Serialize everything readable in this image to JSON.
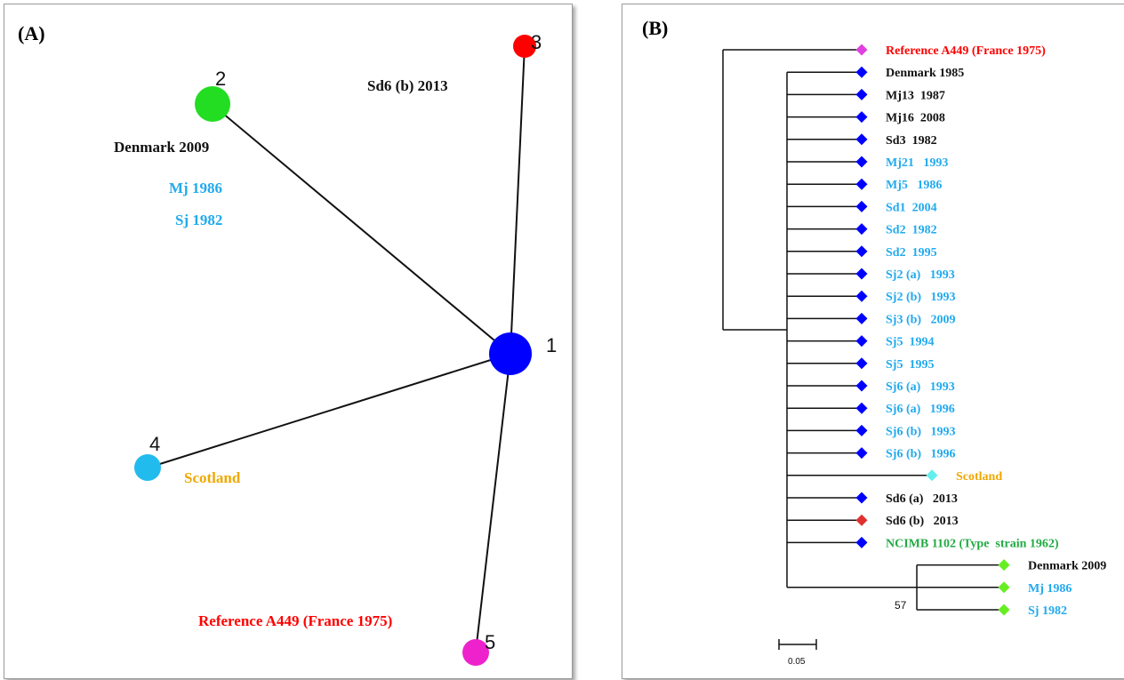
{
  "colors": {
    "blue": "#0000ff",
    "red": "#ff0000",
    "green": "#22dd22",
    "cyan": "#22bbee",
    "magenta": "#ee22cc",
    "text_black": "#111111",
    "text_cyan": "#22aaee",
    "text_orange": "#f0a800",
    "text_red": "#ff0000",
    "text_green": "#22aa44",
    "diamond_green": "#66ee22",
    "diamond_cyan": "#66eeee",
    "diamond_red": "#e03030",
    "diamond_magenta": "#e040e0"
  },
  "panel_a": {
    "label": "(A)",
    "nodes": [
      {
        "id": "1",
        "color": "blue"
      },
      {
        "id": "2",
        "color": "green"
      },
      {
        "id": "3",
        "color": "red"
      },
      {
        "id": "4",
        "color": "cyan"
      },
      {
        "id": "5",
        "color": "magenta"
      }
    ],
    "edges": [
      [
        "1",
        "2"
      ],
      [
        "1",
        "3"
      ],
      [
        "1",
        "4"
      ],
      [
        "1",
        "5"
      ]
    ],
    "labels": [
      {
        "text": "Sd6 (b)   2013",
        "color": "text_black"
      },
      {
        "text": "Denmark 2009",
        "color": "text_black"
      },
      {
        "text": "Mj 1986",
        "color": "text_cyan"
      },
      {
        "text": "Sj 1982",
        "color": "text_cyan"
      },
      {
        "text": "Scotland",
        "color": "text_orange"
      },
      {
        "text": "Reference A449 (France 1975)",
        "color": "text_red"
      }
    ]
  },
  "panel_b": {
    "label": "(B)",
    "leaves": [
      {
        "text": "Reference A449 (France 1975)",
        "text_color": "text_red",
        "marker": "diamond_magenta"
      },
      {
        "text": "Denmark 1985",
        "text_color": "text_black",
        "marker": "blue"
      },
      {
        "text": "Mj13  1987",
        "text_color": "text_black",
        "marker": "blue"
      },
      {
        "text": "Mj16  2008",
        "text_color": "text_black",
        "marker": "blue"
      },
      {
        "text": "Sd3  1982",
        "text_color": "text_black",
        "marker": "blue"
      },
      {
        "text": "Mj21   1993",
        "text_color": "text_cyan",
        "marker": "blue"
      },
      {
        "text": "Mj5   1986",
        "text_color": "text_cyan",
        "marker": "blue"
      },
      {
        "text": "Sd1  2004",
        "text_color": "text_cyan",
        "marker": "blue"
      },
      {
        "text": "Sd2  1982",
        "text_color": "text_cyan",
        "marker": "blue"
      },
      {
        "text": "Sd2  1995",
        "text_color": "text_cyan",
        "marker": "blue"
      },
      {
        "text": "Sj2 (a)   1993",
        "text_color": "text_cyan",
        "marker": "blue"
      },
      {
        "text": "Sj2 (b)   1993",
        "text_color": "text_cyan",
        "marker": "blue"
      },
      {
        "text": "Sj3 (b)   2009",
        "text_color": "text_cyan",
        "marker": "blue"
      },
      {
        "text": "Sj5  1994",
        "text_color": "text_cyan",
        "marker": "blue"
      },
      {
        "text": "Sj5  1995",
        "text_color": "text_cyan",
        "marker": "blue"
      },
      {
        "text": "Sj6 (a)   1993",
        "text_color": "text_cyan",
        "marker": "blue"
      },
      {
        "text": "Sj6 (a)   1996",
        "text_color": "text_cyan",
        "marker": "blue"
      },
      {
        "text": "Sj6 (b)   1993",
        "text_color": "text_cyan",
        "marker": "blue"
      },
      {
        "text": "Sj6 (b)   1996",
        "text_color": "text_cyan",
        "marker": "blue"
      },
      {
        "text": "Scotland",
        "text_color": "text_orange",
        "marker": "diamond_cyan"
      },
      {
        "text": "Sd6 (a)   2013",
        "text_color": "text_black",
        "marker": "blue"
      },
      {
        "text": "Sd6 (b)   2013",
        "text_color": "text_black",
        "marker": "diamond_red"
      },
      {
        "text": "NCIMB 1102 (Type  strain 1962)",
        "text_color": "text_green",
        "marker": "blue"
      },
      {
        "text": "Denmark 2009",
        "text_color": "text_black",
        "marker": "diamond_green"
      },
      {
        "text": "Mj 1986",
        "text_color": "text_cyan",
        "marker": "diamond_green"
      },
      {
        "text": "Sj 1982",
        "text_color": "text_cyan",
        "marker": "diamond_green"
      }
    ],
    "bootstrap": "57",
    "scale_bar": "0.05"
  }
}
